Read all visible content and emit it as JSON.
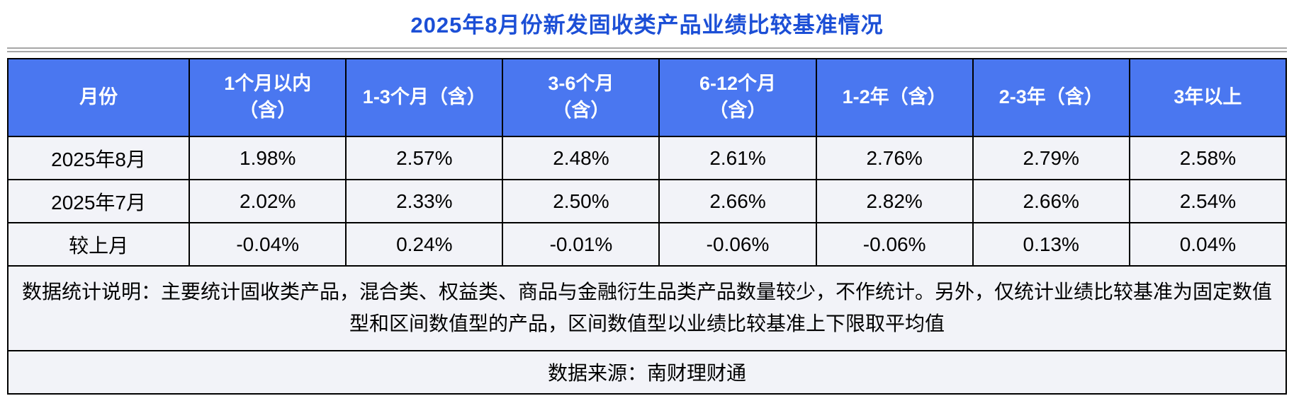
{
  "chart_data": {
    "type": "table",
    "title": "2025年8月份新发固收类产品业绩比较基准情况",
    "columns": [
      "月份",
      "1个月以内\n（含）",
      "1-3个月（含）",
      "3-6个月\n（含）",
      "6-12个月\n（含）",
      "1-2年（含）",
      "2-3年（含）",
      "3年以上"
    ],
    "rows": [
      [
        "2025年8月",
        "1.98%",
        "2.57%",
        "2.48%",
        "2.61%",
        "2.76%",
        "2.79%",
        "2.58%"
      ],
      [
        "2025年7月",
        "2.02%",
        "2.33%",
        "2.50%",
        "2.66%",
        "2.82%",
        "2.66%",
        "2.54%"
      ],
      [
        "较上月",
        "-0.04%",
        "0.24%",
        "-0.01%",
        "-0.06%",
        "-0.06%",
        "0.13%",
        "0.04%"
      ]
    ],
    "notes": "数据统计说明：主要统计固收类产品，混合类、权益类、商品与金融衍生品类产品数量较少，不作统计。另外，仅统计业绩比较基准为固定数值型和区间数值型的产品，区间数值型以业绩比较基准上下限取平均值",
    "source": "数据来源：南财理财通",
    "layout": "header row blue, 3 data rows, notes row, source row"
  },
  "colors": {
    "title_text": "#1C4FD6",
    "header_bg": "#4A77F0",
    "header_text": "#FFFFFF",
    "row_bg": "#F2F3F8",
    "table_border": "#000000",
    "divider": "#A6A6A6"
  }
}
